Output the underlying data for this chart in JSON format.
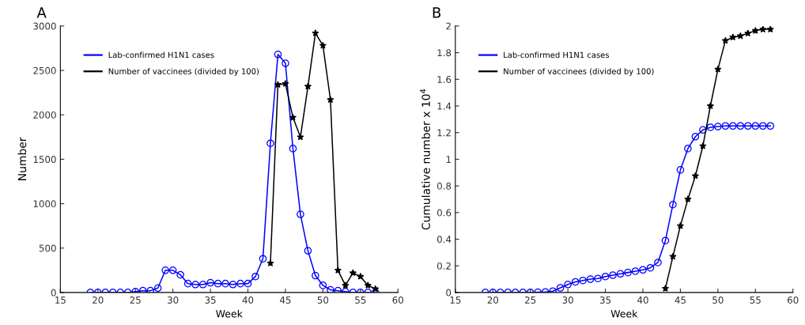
{
  "chart_data": [
    {
      "type": "line",
      "title": "A",
      "xlabel": "Week",
      "ylabel": "Number",
      "xlim": [
        15,
        60
      ],
      "xticks": [
        15,
        20,
        25,
        30,
        35,
        40,
        45,
        50,
        55,
        60
      ],
      "ylim": [
        0,
        3000
      ],
      "yticks": [
        0,
        500,
        1000,
        1500,
        2000,
        2500,
        3000
      ],
      "legend": "top left",
      "grid": false,
      "series": [
        {
          "name": "Lab-confirmed H1N1 cases",
          "color": "#0000ff",
          "marker": "circle",
          "x": [
            19,
            20,
            21,
            22,
            23,
            24,
            25,
            26,
            27,
            28,
            29,
            30,
            31,
            32,
            33,
            34,
            35,
            36,
            37,
            38,
            39,
            40,
            41,
            42,
            43,
            44,
            45,
            46,
            47,
            48,
            49,
            50,
            51,
            52,
            53,
            54,
            55,
            56,
            57
          ],
          "values": [
            0,
            0,
            0,
            0,
            0,
            0,
            10,
            20,
            20,
            50,
            250,
            250,
            200,
            100,
            90,
            90,
            110,
            100,
            100,
            90,
            100,
            100,
            180,
            380,
            1680,
            2680,
            2580,
            1620,
            880,
            470,
            190,
            80,
            30,
            20,
            10,
            0,
            0,
            0,
            0
          ]
        },
        {
          "name": "Number of vaccinees (divided by 100)",
          "color": "#000000",
          "marker": "star",
          "x": [
            43,
            44,
            45,
            46,
            47,
            48,
            49,
            50,
            51,
            52,
            53,
            54,
            55,
            56,
            57
          ],
          "values": [
            330,
            2340,
            2350,
            1970,
            1750,
            2320,
            2920,
            2780,
            2170,
            250,
            80,
            220,
            180,
            80,
            40
          ]
        }
      ]
    },
    {
      "type": "line",
      "title": "B",
      "xlabel": "Week",
      "ylabel": "Cumulative number x 10$^{4}$",
      "xlim": [
        15,
        60
      ],
      "xticks": [
        15,
        20,
        25,
        30,
        35,
        40,
        45,
        50,
        55,
        60
      ],
      "ylim": [
        0,
        2
      ],
      "yticks": [
        0,
        0.2,
        0.4,
        0.6,
        0.8,
        1,
        1.2,
        1.4,
        1.6,
        1.8,
        2
      ],
      "legend": "top left",
      "grid": false,
      "series": [
        {
          "name": "Lab-confirmed H1N1 cases",
          "color": "#0000ff",
          "marker": "circle",
          "x": [
            19,
            20,
            21,
            22,
            23,
            24,
            25,
            26,
            27,
            28,
            29,
            30,
            31,
            32,
            33,
            34,
            35,
            36,
            37,
            38,
            39,
            40,
            41,
            42,
            43,
            44,
            45,
            46,
            47,
            48,
            49,
            50,
            51,
            52,
            53,
            54,
            55,
            56,
            57
          ],
          "values": [
            0,
            0,
            0,
            0,
            0,
            0,
            0,
            0.002,
            0.004,
            0.01,
            0.035,
            0.06,
            0.08,
            0.09,
            0.1,
            0.105,
            0.12,
            0.13,
            0.14,
            0.15,
            0.16,
            0.17,
            0.185,
            0.225,
            0.39,
            0.66,
            0.92,
            1.08,
            1.17,
            1.22,
            1.24,
            1.245,
            1.25,
            1.25,
            1.25,
            1.25,
            1.25,
            1.25,
            1.25
          ]
        },
        {
          "name": "Number of vaccinees (divided by 100)",
          "color": "#000000",
          "marker": "star",
          "x": [
            43,
            44,
            45,
            46,
            47,
            48,
            49,
            50,
            51,
            52,
            53,
            54,
            55,
            56,
            57
          ],
          "values": [
            0.03,
            0.27,
            0.5,
            0.7,
            0.875,
            1.1,
            1.4,
            1.675,
            1.89,
            1.915,
            1.925,
            1.945,
            1.965,
            1.975,
            1.975
          ]
        }
      ]
    }
  ]
}
